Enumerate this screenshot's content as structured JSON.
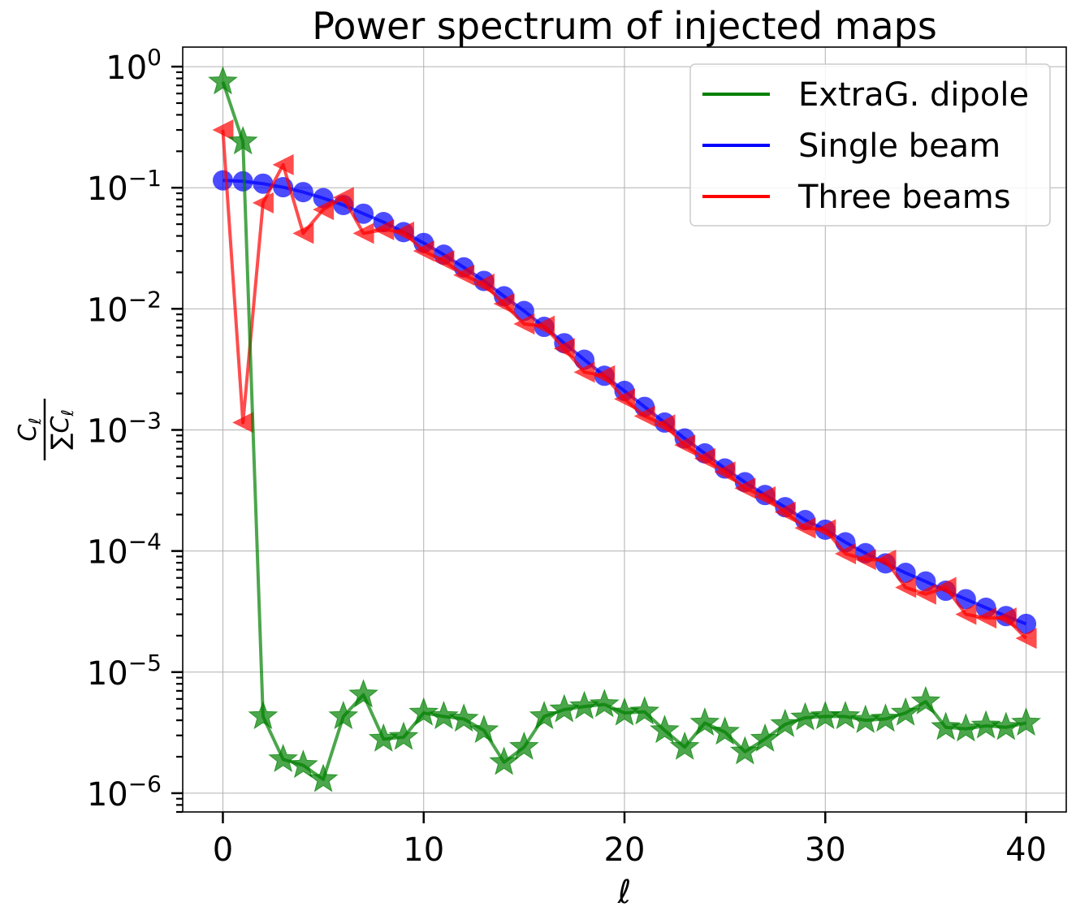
{
  "chart_data": {
    "type": "line",
    "title": "Power spectrum of injected maps",
    "xlabel": "ℓ",
    "ylabel": {
      "numerator": "C",
      "denominator": "∑C",
      "subscript": "ℓ"
    },
    "x_scale": "linear",
    "y_scale": "log",
    "xlim": [
      -2,
      42
    ],
    "ylim": [
      7e-07,
      1.45
    ],
    "x_ticks": [
      0,
      10,
      20,
      30,
      40
    ],
    "x_tick_labels": [
      "0",
      "10",
      "20",
      "30",
      "40"
    ],
    "y_ticks": [
      {
        "value": 1,
        "base": "10",
        "exp": "0"
      },
      {
        "value": 0.1,
        "base": "10",
        "exp": "−1"
      },
      {
        "value": 0.01,
        "base": "10",
        "exp": "−2"
      },
      {
        "value": 0.001,
        "base": "10",
        "exp": "−3"
      },
      {
        "value": 0.0001,
        "base": "10",
        "exp": "−4"
      },
      {
        "value": 1e-05,
        "base": "10",
        "exp": "−5"
      },
      {
        "value": 1e-06,
        "base": "10",
        "exp": "−6"
      }
    ],
    "grid": true,
    "legend_position": "top-right",
    "x": [
      0,
      1,
      2,
      3,
      4,
      5,
      6,
      7,
      8,
      9,
      10,
      11,
      12,
      13,
      14,
      15,
      16,
      17,
      18,
      19,
      20,
      21,
      22,
      23,
      24,
      25,
      26,
      27,
      28,
      29,
      30,
      31,
      32,
      33,
      34,
      35,
      36,
      37,
      38,
      39,
      40
    ],
    "series": [
      {
        "name": "ExtraG. dipole",
        "color": "#008000",
        "marker": "star",
        "values": [
          0.75,
          0.24,
          4.3e-06,
          1.9e-06,
          1.7e-06,
          1.3e-06,
          4.3e-06,
          6.5e-06,
          2.8e-06,
          2.9e-06,
          4.6e-06,
          4.3e-06,
          4.1e-06,
          3.3e-06,
          1.8e-06,
          2.4e-06,
          4.3e-06,
          4.9e-06,
          5.2e-06,
          5.4e-06,
          4.6e-06,
          4.7e-06,
          3.3e-06,
          2.4e-06,
          3.8e-06,
          3.2e-06,
          2.2e-06,
          2.8e-06,
          3.7e-06,
          4.2e-06,
          4.3e-06,
          4.3e-06,
          4e-06,
          4.1e-06,
          4.6e-06,
          5.7e-06,
          3.5e-06,
          3.4e-06,
          3.6e-06,
          3.5e-06,
          3.8e-06
        ]
      },
      {
        "name": "Single beam",
        "color": "#0000ff",
        "marker": "circle",
        "values": [
          0.115,
          0.113,
          0.108,
          0.101,
          0.092,
          0.082,
          0.072,
          0.061,
          0.052,
          0.043,
          0.035,
          0.028,
          0.022,
          0.017,
          0.0127,
          0.0096,
          0.0071,
          0.0052,
          0.0038,
          0.0028,
          0.0021,
          0.00155,
          0.00115,
          0.00085,
          0.00064,
          0.00048,
          0.00037,
          0.00029,
          0.00023,
          0.00018,
          0.00015,
          0.000118,
          9.6e-05,
          7.9e-05,
          6.6e-05,
          5.6e-05,
          4.7e-05,
          4e-05,
          3.4e-05,
          2.9e-05,
          2.5e-05
        ]
      },
      {
        "name": "Three beams",
        "color": "#ff0000",
        "marker": "triangle-left",
        "values": [
          0.3,
          0.00115,
          0.075,
          0.155,
          0.042,
          0.066,
          0.083,
          0.042,
          0.045,
          0.043,
          0.03,
          0.025,
          0.019,
          0.016,
          0.011,
          0.0075,
          0.0072,
          0.0047,
          0.003,
          0.0028,
          0.0018,
          0.0013,
          0.0011,
          0.00075,
          0.00058,
          0.00045,
          0.00033,
          0.00028,
          0.00021,
          0.000155,
          0.00015,
          9.5e-05,
          8.5e-05,
          8.4e-05,
          5e-05,
          4.4e-05,
          5e-05,
          3e-05,
          2.8e-05,
          2.8e-05,
          1.9e-05
        ]
      }
    ]
  }
}
